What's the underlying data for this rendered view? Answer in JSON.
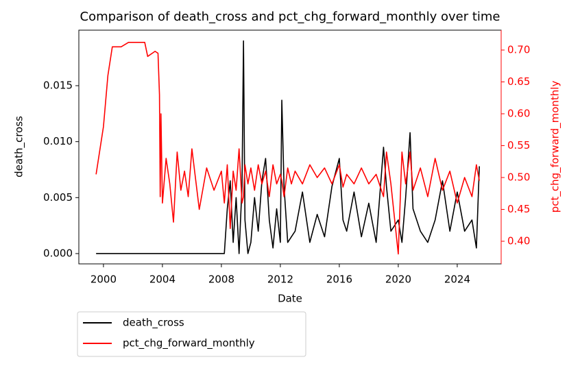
{
  "chart_data": {
    "type": "line",
    "title": "Comparison of death_cross and pct_chg_forward_monthly over time",
    "x_label": "Date",
    "y_label": "death_cross",
    "y2_label": "pct_chg_forward_monthly",
    "x": [
      1999.5,
      2000.0,
      2000.3,
      2000.6,
      2001.2,
      2001.7,
      2002.8,
      2003.0,
      2003.5,
      2003.7,
      2003.8,
      2003.85,
      2003.9,
      2004.0,
      2004.25,
      2004.5,
      2004.75,
      2005.0,
      2005.25,
      2005.5,
      2005.75,
      2006.0,
      2006.5,
      2007.0,
      2007.5,
      2008.0,
      2008.2,
      2008.4,
      2008.6,
      2008.8,
      2009.0,
      2009.2,
      2009.4,
      2009.5,
      2009.6,
      2009.8,
      2010.0,
      2010.25,
      2010.5,
      2010.75,
      2011.0,
      2011.25,
      2011.5,
      2011.75,
      2012.0,
      2012.1,
      2012.25,
      2012.5,
      2012.75,
      2013.0,
      2013.5,
      2014.0,
      2014.5,
      2015.0,
      2015.5,
      2016.0,
      2016.25,
      2016.5,
      2017.0,
      2017.5,
      2018.0,
      2018.5,
      2019.0,
      2019.2,
      2019.5,
      2020.0,
      2020.25,
      2020.5,
      2020.8,
      2021.0,
      2021.5,
      2022.0,
      2022.5,
      2023.0,
      2023.5,
      2024.0,
      2024.5,
      2025.0,
      2025.3,
      2025.5
    ],
    "series": [
      {
        "name": "death_cross",
        "color": "#000000",
        "axis": "y",
        "values": [
          0,
          0,
          0,
          0,
          0,
          0,
          0,
          0,
          0,
          0,
          0,
          0,
          0,
          0,
          0,
          0,
          0,
          0,
          0,
          0,
          0,
          0,
          0,
          0,
          0,
          0,
          0,
          0.004,
          0.0065,
          0.001,
          0.005,
          0,
          0.006,
          0.019,
          0.003,
          0,
          0.001,
          0.005,
          0.002,
          0.0065,
          0.0085,
          0.003,
          0.0005,
          0.004,
          0.001,
          0.0137,
          0.006,
          0.001,
          0.0015,
          0.002,
          0.0055,
          0.001,
          0.0035,
          0.0015,
          0.006,
          0.0085,
          0.003,
          0.002,
          0.0055,
          0.0015,
          0.0045,
          0.001,
          0.0095,
          0.006,
          0.002,
          0.003,
          0.001,
          0.005,
          0.0108,
          0.004,
          0.002,
          0.001,
          0.003,
          0.0065,
          0.002,
          0.0055,
          0.002,
          0.003,
          0.0005,
          0.0078
        ]
      },
      {
        "name": "pct_chg_forward_monthly",
        "color": "#ff0000",
        "axis": "y2",
        "values": [
          0.505,
          0.58,
          0.66,
          0.705,
          0.705,
          0.712,
          0.712,
          0.69,
          0.698,
          0.695,
          0.63,
          0.47,
          0.6,
          0.46,
          0.53,
          0.49,
          0.43,
          0.54,
          0.48,
          0.51,
          0.47,
          0.545,
          0.45,
          0.515,
          0.48,
          0.51,
          0.46,
          0.52,
          0.42,
          0.51,
          0.48,
          0.545,
          0.46,
          0.47,
          0.52,
          0.49,
          0.515,
          0.48,
          0.52,
          0.49,
          0.51,
          0.47,
          0.52,
          0.49,
          0.505,
          0.495,
          0.47,
          0.515,
          0.49,
          0.51,
          0.49,
          0.52,
          0.5,
          0.515,
          0.49,
          0.52,
          0.485,
          0.505,
          0.49,
          0.515,
          0.49,
          0.505,
          0.47,
          0.54,
          0.49,
          0.38,
          0.54,
          0.49,
          0.54,
          0.48,
          0.515,
          0.47,
          0.53,
          0.48,
          0.51,
          0.46,
          0.5,
          0.47,
          0.52,
          0.495
        ]
      }
    ],
    "xlim": [
      1998.33,
      2026.98
    ],
    "xticks": [
      2000,
      2004,
      2008,
      2012,
      2016,
      2020,
      2024
    ],
    "ylim": [
      -0.00092,
      0.01996
    ],
    "yticks": [
      {
        "value": 0,
        "label": "0.000"
      },
      {
        "value": 0.005,
        "label": "0.005"
      },
      {
        "value": 0.01,
        "label": "0.010"
      },
      {
        "value": 0.015,
        "label": "0.015"
      }
    ],
    "y2lim": [
      0.3645,
      0.7312
    ],
    "y2ticks": [
      {
        "value": 0.4,
        "label": "0.40"
      },
      {
        "value": 0.45,
        "label": "0.45"
      },
      {
        "value": 0.5,
        "label": "0.50"
      },
      {
        "value": 0.55,
        "label": "0.55"
      },
      {
        "value": 0.6,
        "label": "0.60"
      },
      {
        "value": 0.65,
        "label": "0.65"
      },
      {
        "value": 0.7,
        "label": "0.70"
      }
    ],
    "legend": "below"
  }
}
